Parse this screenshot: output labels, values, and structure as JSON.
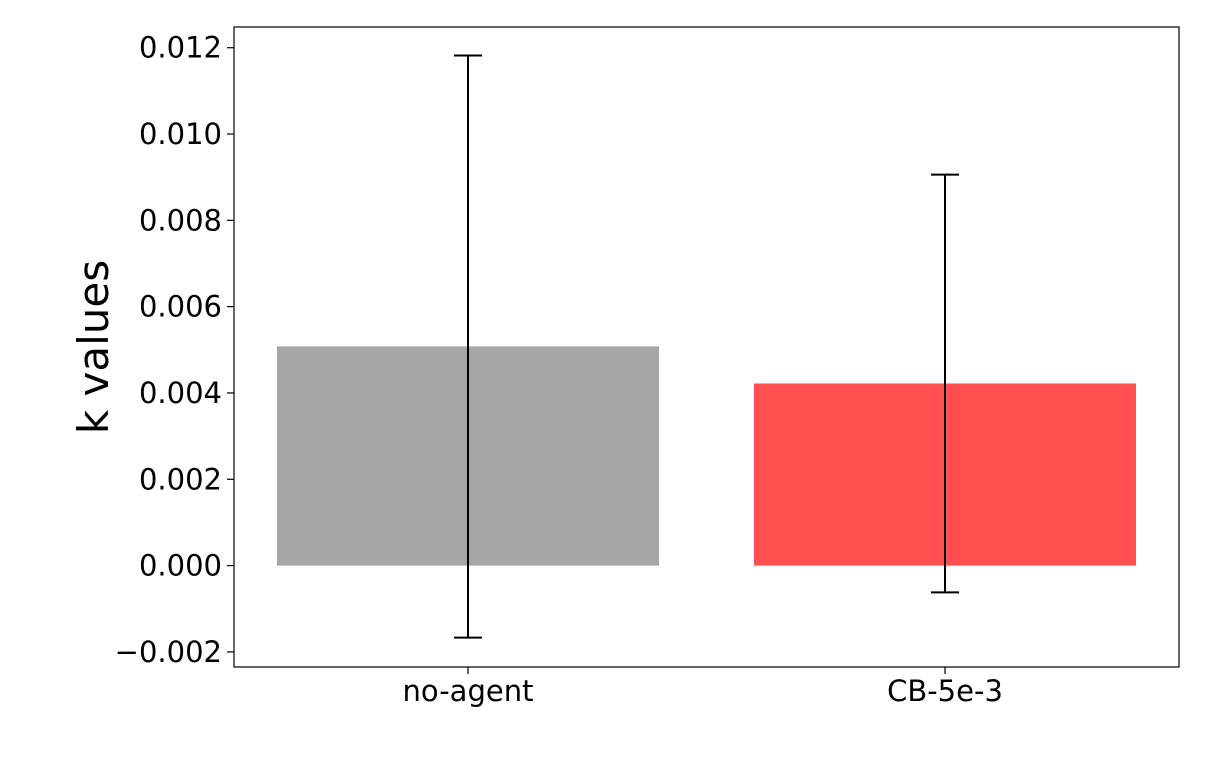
{
  "chart_data": {
    "type": "bar",
    "title": "",
    "xlabel": "",
    "ylabel": "k values",
    "categories": [
      "no-agent",
      "CB-5e-3"
    ],
    "values": [
      0.00508,
      0.00422
    ],
    "error": [
      {
        "low": -0.00167,
        "high": 0.01182
      },
      {
        "low": -0.00062,
        "high": 0.00906
      }
    ],
    "colors": [
      "#a6a6a6",
      "#ff4f4f"
    ],
    "ylim": [
      -0.00235,
      0.01248
    ],
    "yticks": [
      -0.002,
      0.0,
      0.002,
      0.004,
      0.006,
      0.008,
      0.01,
      0.012
    ],
    "ytick_labels": [
      "−0.002",
      "0.000",
      "0.002",
      "0.004",
      "0.006",
      "0.008",
      "0.010",
      "0.012"
    ],
    "grid": false,
    "legend": "none"
  }
}
